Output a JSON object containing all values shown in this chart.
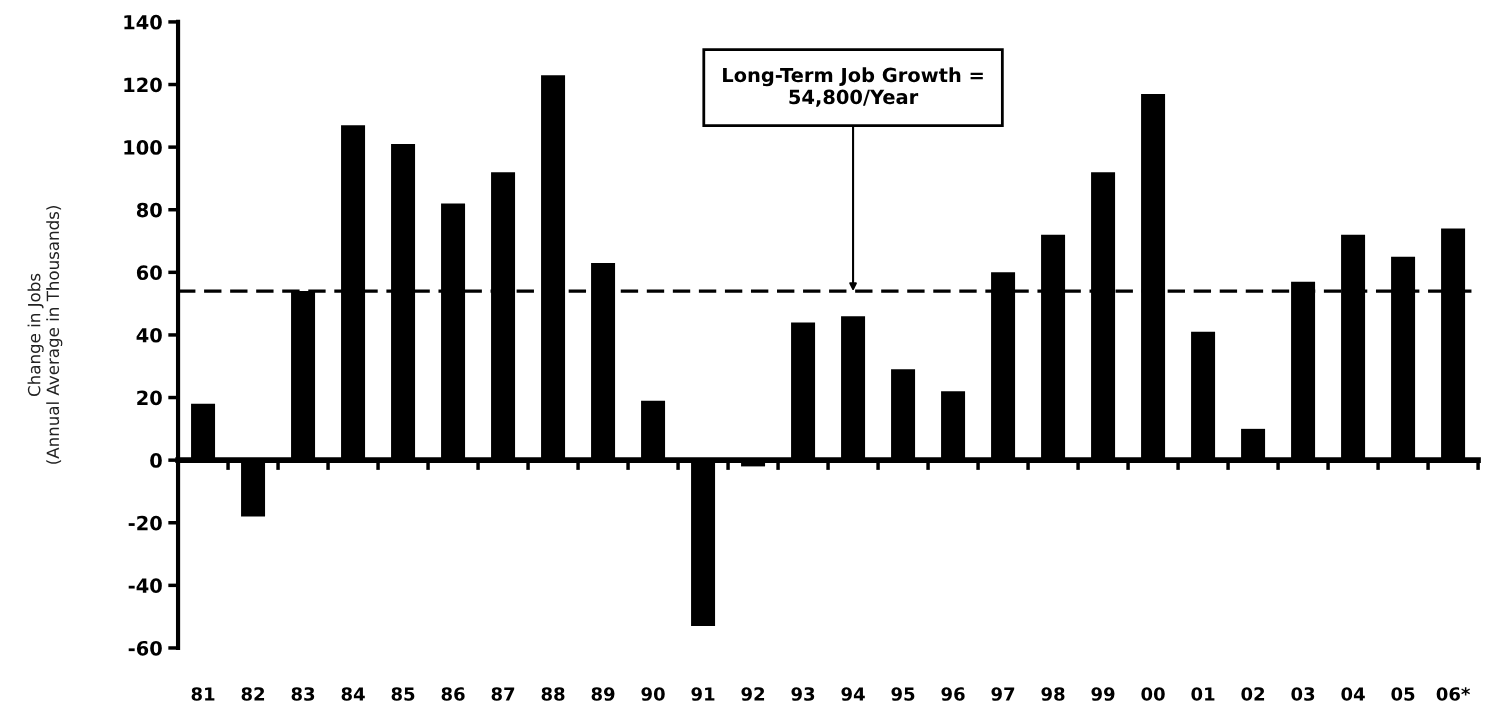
{
  "chart_data": {
    "type": "bar",
    "ylabel": "Change in Jobs\n(Annual Average in Thousands)",
    "categories": [
      "81",
      "82",
      "83",
      "84",
      "85",
      "86",
      "87",
      "88",
      "89",
      "90",
      "91",
      "92",
      "93",
      "94",
      "95",
      "96",
      "97",
      "98",
      "99",
      "00",
      "01",
      "02",
      "03",
      "04",
      "05",
      "06*"
    ],
    "values": [
      18,
      -18,
      54,
      107,
      101,
      82,
      92,
      123,
      63,
      19,
      -53,
      -2,
      44,
      46,
      29,
      22,
      60,
      72,
      92,
      117,
      41,
      10,
      57,
      72,
      65,
      74
    ],
    "color": "#000000",
    "ylim": [
      -60,
      140
    ],
    "yticks": [
      -60,
      -40,
      -20,
      0,
      20,
      40,
      60,
      80,
      100,
      120,
      140
    ],
    "ref_lines": [
      {
        "axis": "y",
        "value": 54,
        "color": "#000000",
        "line_style": "dashed"
      }
    ],
    "annotations": [
      {
        "text": "Long-Term Job Growth =\n54,800/Year",
        "x": "94",
        "y": 54
      }
    ]
  }
}
